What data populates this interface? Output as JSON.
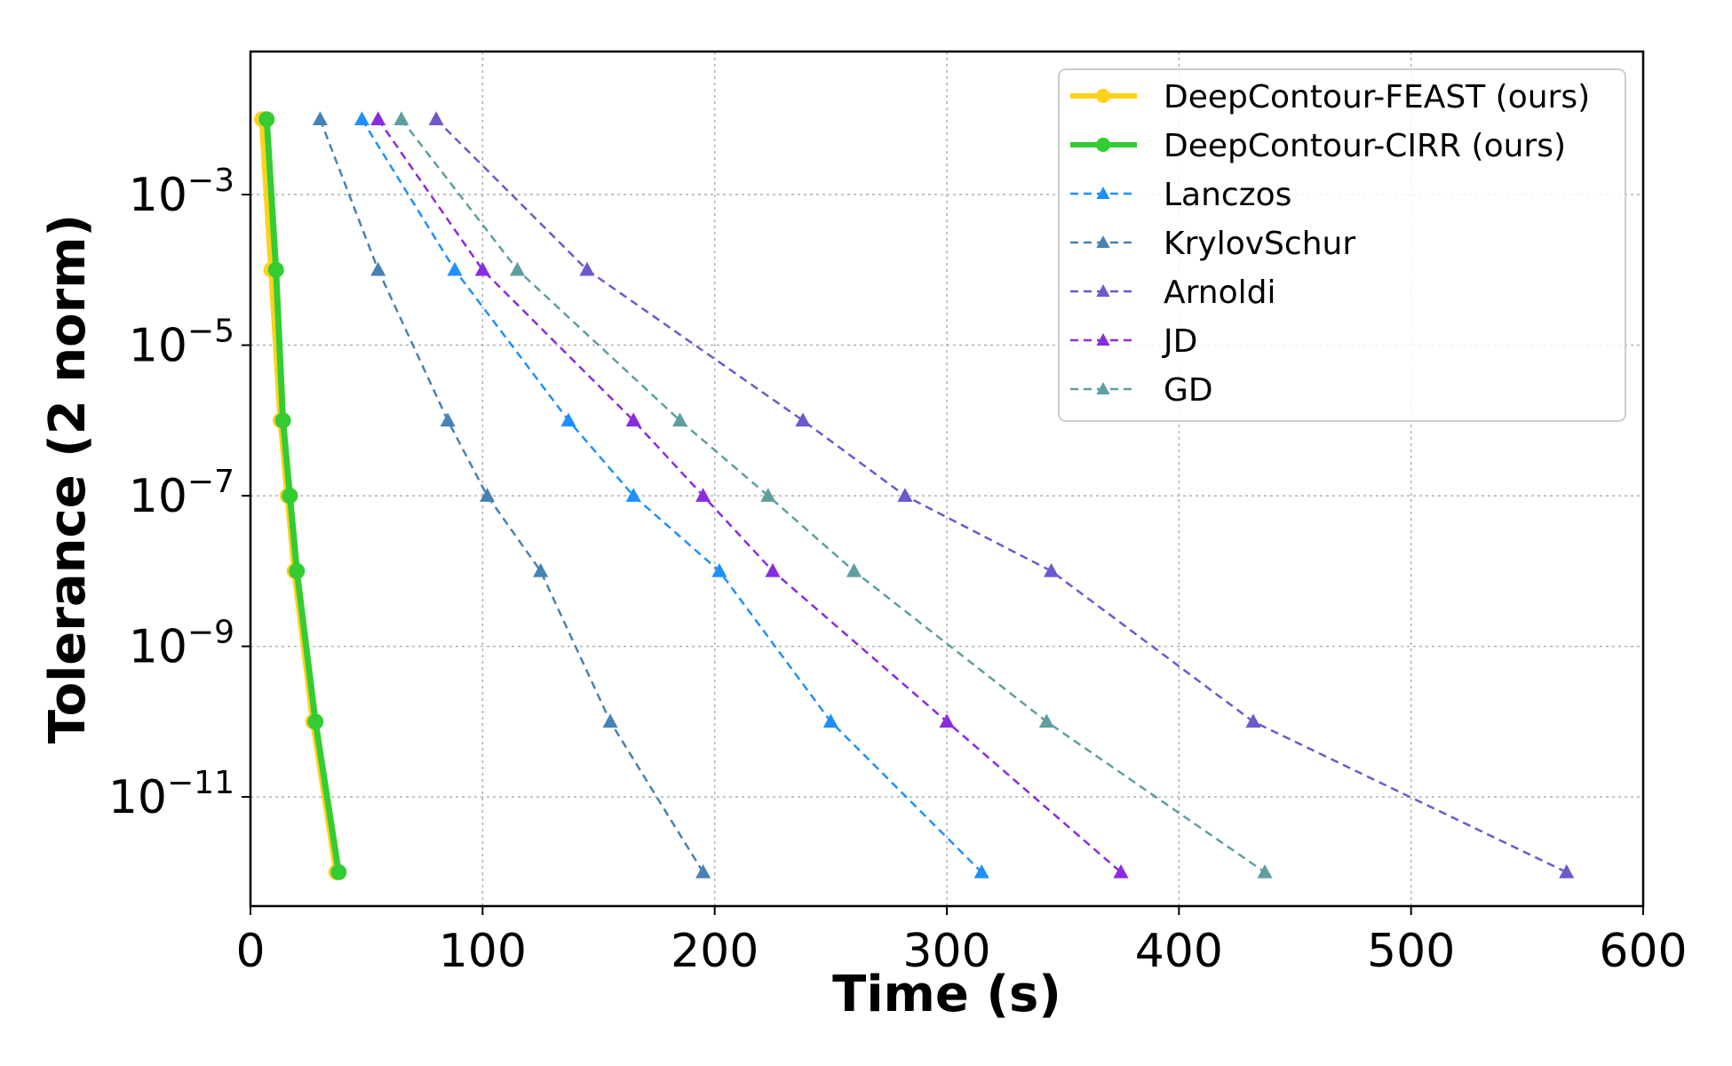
{
  "chart_data": {
    "type": "line",
    "title": "",
    "xlabel": "Time (s)",
    "ylabel": "Tolerance (2 norm)",
    "xlim": [
      0,
      600
    ],
    "ylim_exp": [
      -12.45,
      -1.1
    ],
    "yscale": "log",
    "grid": true,
    "legend_position": "top-right",
    "xticks": [
      "0",
      "100",
      "200",
      "300",
      "400",
      "500",
      "600"
    ],
    "xtick_values": [
      0,
      100,
      200,
      300,
      400,
      500,
      600
    ],
    "yticks": [
      {
        "base": "10",
        "exp": "−3",
        "value_exp": -3
      },
      {
        "base": "10",
        "exp": "−5",
        "value_exp": -5
      },
      {
        "base": "10",
        "exp": "−7",
        "value_exp": -7
      },
      {
        "base": "10",
        "exp": "−9",
        "value_exp": -9
      },
      {
        "base": "10",
        "exp": "−11",
        "value_exp": -11
      }
    ],
    "y_exponents": [
      -2,
      -4,
      -6,
      -7,
      -8,
      -10,
      -12
    ],
    "series": [
      {
        "name": "DeepContour-FEAST (ours)",
        "color": "#ffd21a",
        "style": "solid",
        "marker": "circle",
        "x": [
          5,
          9,
          13,
          16,
          19,
          27,
          37
        ]
      },
      {
        "name": "DeepContour-CIRR (ours)",
        "color": "#33cc33",
        "style": "solid",
        "marker": "circle",
        "x": [
          7,
          11,
          14,
          17,
          20,
          28,
          38
        ]
      },
      {
        "name": "Lanczos",
        "color": "#1e90ff",
        "style": "dashed",
        "marker": "triangle",
        "x": [
          48,
          88,
          137,
          165,
          202,
          250,
          315
        ]
      },
      {
        "name": "KrylovSchur",
        "color": "#4682b4",
        "style": "dashed",
        "marker": "triangle",
        "x": [
          30,
          55,
          85,
          102,
          125,
          155,
          195
        ]
      },
      {
        "name": "Arnoldi",
        "color": "#6a5acd",
        "style": "dashed",
        "marker": "triangle",
        "x": [
          80,
          145,
          238,
          282,
          345,
          432,
          567
        ]
      },
      {
        "name": "JD",
        "color": "#8a2be2",
        "style": "dashed",
        "marker": "triangle",
        "x": [
          55,
          100,
          165,
          195,
          225,
          300,
          375
        ]
      },
      {
        "name": "GD",
        "color": "#5f9ea0",
        "style": "dashed",
        "marker": "triangle",
        "x": [
          65,
          115,
          185,
          223,
          260,
          343,
          437
        ]
      }
    ]
  }
}
